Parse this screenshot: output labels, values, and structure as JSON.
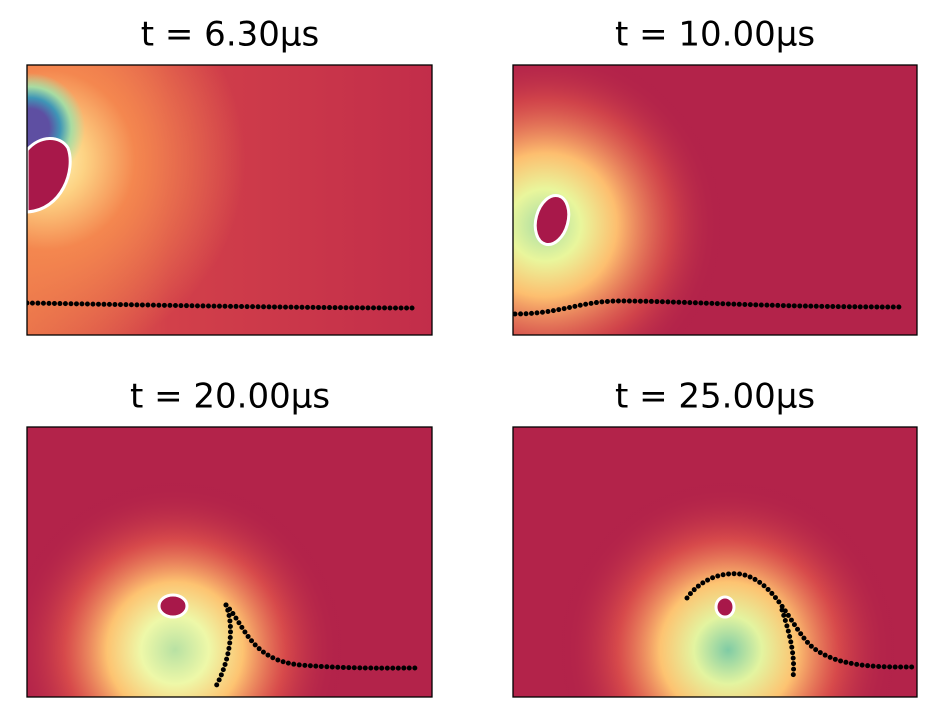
{
  "panels": [
    {
      "title": "t = 6.30μs"
    },
    {
      "title": "t = 10.00μs"
    },
    {
      "title": "t = 20.00μs"
    },
    {
      "title": "t = 25.00μs"
    }
  ]
}
